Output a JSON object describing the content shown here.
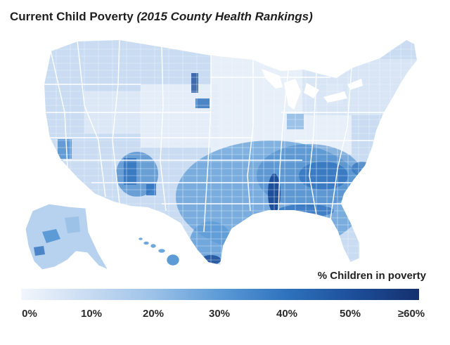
{
  "title": {
    "main": "Current Child Poverty",
    "source": "(2015 County Health Rankings)"
  },
  "legend": {
    "title": "% Children in poverty",
    "ticks": [
      "0%",
      "10%",
      "20%",
      "30%",
      "40%",
      "50%",
      "≥60%"
    ],
    "colors": [
      "#f2f6fc",
      "#c9dcf2",
      "#9cc2e8",
      "#5c9bd6",
      "#2f72bd",
      "#1d4f9a",
      "#14306e"
    ]
  },
  "colors": {
    "state_border": "#ffffff",
    "county_border": "#e4ecf7"
  }
}
